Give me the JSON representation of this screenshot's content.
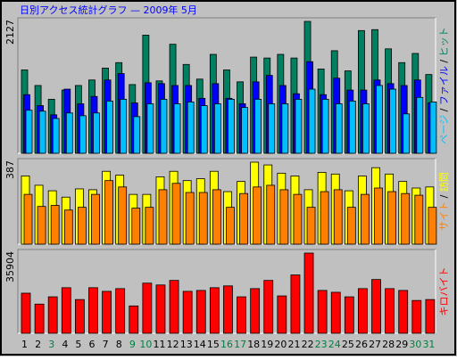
{
  "title": "日別アクセス統計グラフ — 2009年 5月",
  "categories": [
    "1",
    "2",
    "3",
    "4",
    "5",
    "6",
    "7",
    "8",
    "9",
    "10",
    "11",
    "12",
    "13",
    "14",
    "15",
    "16",
    "17",
    "18",
    "19",
    "20",
    "21",
    "22",
    "23",
    "24",
    "25",
    "26",
    "27",
    "28",
    "29",
    "30",
    "31"
  ],
  "label_colors": [
    "#000000",
    "#000000",
    "#008040",
    "#000000",
    "#000000",
    "#000000",
    "#000000",
    "#000000",
    "#008040",
    "#008040",
    "#000000",
    "#000000",
    "#000000",
    "#000000",
    "#000000",
    "#008040",
    "#008040",
    "#000000",
    "#000000",
    "#000000",
    "#000000",
    "#000000",
    "#008040",
    "#008040",
    "#000000",
    "#000000",
    "#000000",
    "#000000",
    "#000000",
    "#008040",
    "#008040"
  ],
  "chart_data": [
    {
      "type": "bar",
      "ylim": [
        0,
        2127
      ],
      "series": [
        {
          "name": "ヒット",
          "color": "#008060",
          "values": [
            1344,
            1093,
            871,
            1019,
            1093,
            1182,
            1374,
            1462,
            1108,
            1905,
            1167,
            1758,
            1433,
            1196,
            1595,
            1344,
            1152,
            1551,
            1536,
            1595,
            1536,
            2127,
            1359,
            1654,
            1329,
            1979,
            1994,
            1684,
            1462,
            1610,
            1270
          ]
        },
        {
          "name": "ファイル",
          "color": "#0000ff",
          "values": [
            945,
            768,
            620,
            1034,
            798,
            916,
            1182,
            1285,
            812,
            1137,
            1123,
            1093,
            1093,
            886,
            1123,
            886,
            798,
            1152,
            1256,
            1093,
            960,
            1477,
            945,
            1211,
            1019,
            1019,
            1182,
            1123,
            1093,
            1182,
            812
          ]
        },
        {
          "name": "ページ",
          "color": "#00bfff",
          "values": [
            694,
            679,
            561,
            650,
            606,
            650,
            842,
            871,
            591,
            798,
            871,
            798,
            827,
            768,
            798,
            871,
            738,
            871,
            798,
            798,
            871,
            1034,
            871,
            798,
            842,
            798,
            1093,
            1034,
            635,
            901,
            827
          ]
        }
      ]
    },
    {
      "type": "bar",
      "ylim": [
        0,
        387
      ],
      "series": [
        {
          "name": "訪問",
          "color": "#ffff00",
          "values": [
            322,
            278,
            252,
            222,
            261,
            257,
            344,
            326,
            235,
            235,
            318,
            344,
            300,
            309,
            344,
            248,
            296,
            387,
            374,
            335,
            322,
            257,
            339,
            331,
            252,
            322,
            361,
            331,
            296,
            265,
            270
          ]
        },
        {
          "name": "サイト",
          "color": "#ff8000",
          "values": [
            235,
            178,
            183,
            161,
            174,
            235,
            300,
            270,
            170,
            174,
            257,
            287,
            244,
            244,
            257,
            174,
            239,
            270,
            278,
            257,
            235,
            174,
            248,
            257,
            174,
            235,
            265,
            248,
            239,
            231,
            174
          ]
        }
      ]
    },
    {
      "type": "bar",
      "ylim": [
        0,
        35904
      ],
      "series": [
        {
          "name": "キロバイト",
          "color": "#ff0000",
          "values": [
            17952,
            13056,
            16320,
            20400,
            15096,
            20400,
            18768,
            19992,
            12240,
            22440,
            21624,
            23664,
            18768,
            19176,
            20400,
            21216,
            16320,
            19992,
            23664,
            16728,
            26112,
            35904,
            19176,
            18360,
            16320,
            19992,
            24072,
            19992,
            19176,
            14688,
            15096
          ]
        }
      ]
    }
  ]
}
